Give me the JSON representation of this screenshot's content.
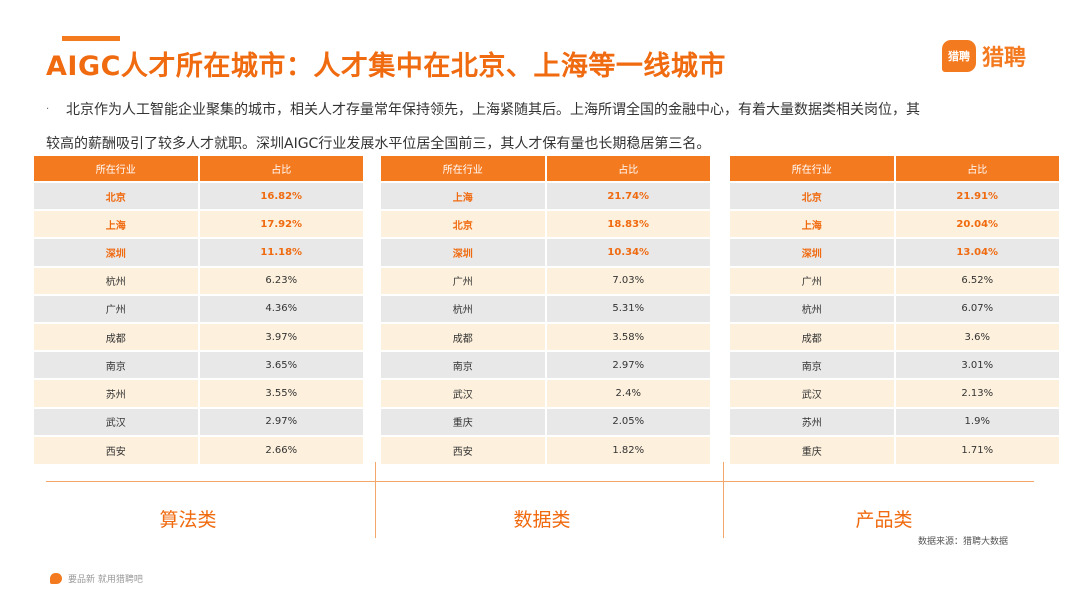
{
  "title": "AIGC人才所在城市：人才集中在北京、上海等一线城市",
  "logo": {
    "badge": "猎聘",
    "text": "猎聘"
  },
  "description": {
    "bullet": "·",
    "line1": "北京作为人工智能企业聚集的城市，相关人才存量常年保持领先，上海紧随其后。上海所谓全国的金融中心，有着大量数据类相关岗位，其",
    "line2": "较高的薪酬吸引了较多人才就职。深圳AIGC行业发展水平位居全国前三，其人才保有量也长期稳居第三名。"
  },
  "chart_data": [
    {
      "type": "table",
      "category_label": "算法类",
      "columns": [
        "所在行业",
        "占比"
      ],
      "rows": [
        [
          "北京",
          "16.82%"
        ],
        [
          "上海",
          "17.92%"
        ],
        [
          "深圳",
          "11.18%"
        ],
        [
          "杭州",
          "6.23%"
        ],
        [
          "广州",
          "4.36%"
        ],
        [
          "成都",
          "3.97%"
        ],
        [
          "南京",
          "3.65%"
        ],
        [
          "苏州",
          "3.55%"
        ],
        [
          "武汉",
          "2.97%"
        ],
        [
          "西安",
          "2.66%"
        ]
      ],
      "highlight_top": 3
    },
    {
      "type": "table",
      "category_label": "数据类",
      "columns": [
        "所在行业",
        "占比"
      ],
      "rows": [
        [
          "上海",
          "21.74%"
        ],
        [
          "北京",
          "18.83%"
        ],
        [
          "深圳",
          "10.34%"
        ],
        [
          "广州",
          "7.03%"
        ],
        [
          "杭州",
          "5.31%"
        ],
        [
          "成都",
          "3.58%"
        ],
        [
          "南京",
          "2.97%"
        ],
        [
          "武汉",
          "2.4%"
        ],
        [
          "重庆",
          "2.05%"
        ],
        [
          "西安",
          "1.82%"
        ]
      ],
      "highlight_top": 3
    },
    {
      "type": "table",
      "category_label": "产品类",
      "columns": [
        "所在行业",
        "占比"
      ],
      "rows": [
        [
          "北京",
          "21.91%"
        ],
        [
          "上海",
          "20.04%"
        ],
        [
          "深圳",
          "13.04%"
        ],
        [
          "广州",
          "6.52%"
        ],
        [
          "杭州",
          "6.07%"
        ],
        [
          "成都",
          "3.6%"
        ],
        [
          "南京",
          "3.01%"
        ],
        [
          "武汉",
          "2.13%"
        ],
        [
          "苏州",
          "1.9%"
        ],
        [
          "重庆",
          "1.71%"
        ]
      ],
      "highlight_top": 3
    }
  ],
  "source": "数据来源：猎聘大数据",
  "footer": "要品新 就用猎聘吧",
  "colors": {
    "accent": "#f47a20",
    "title": "#f06a0f",
    "row_gray": "#e8e8e8",
    "row_cream": "#fdf0dc"
  }
}
